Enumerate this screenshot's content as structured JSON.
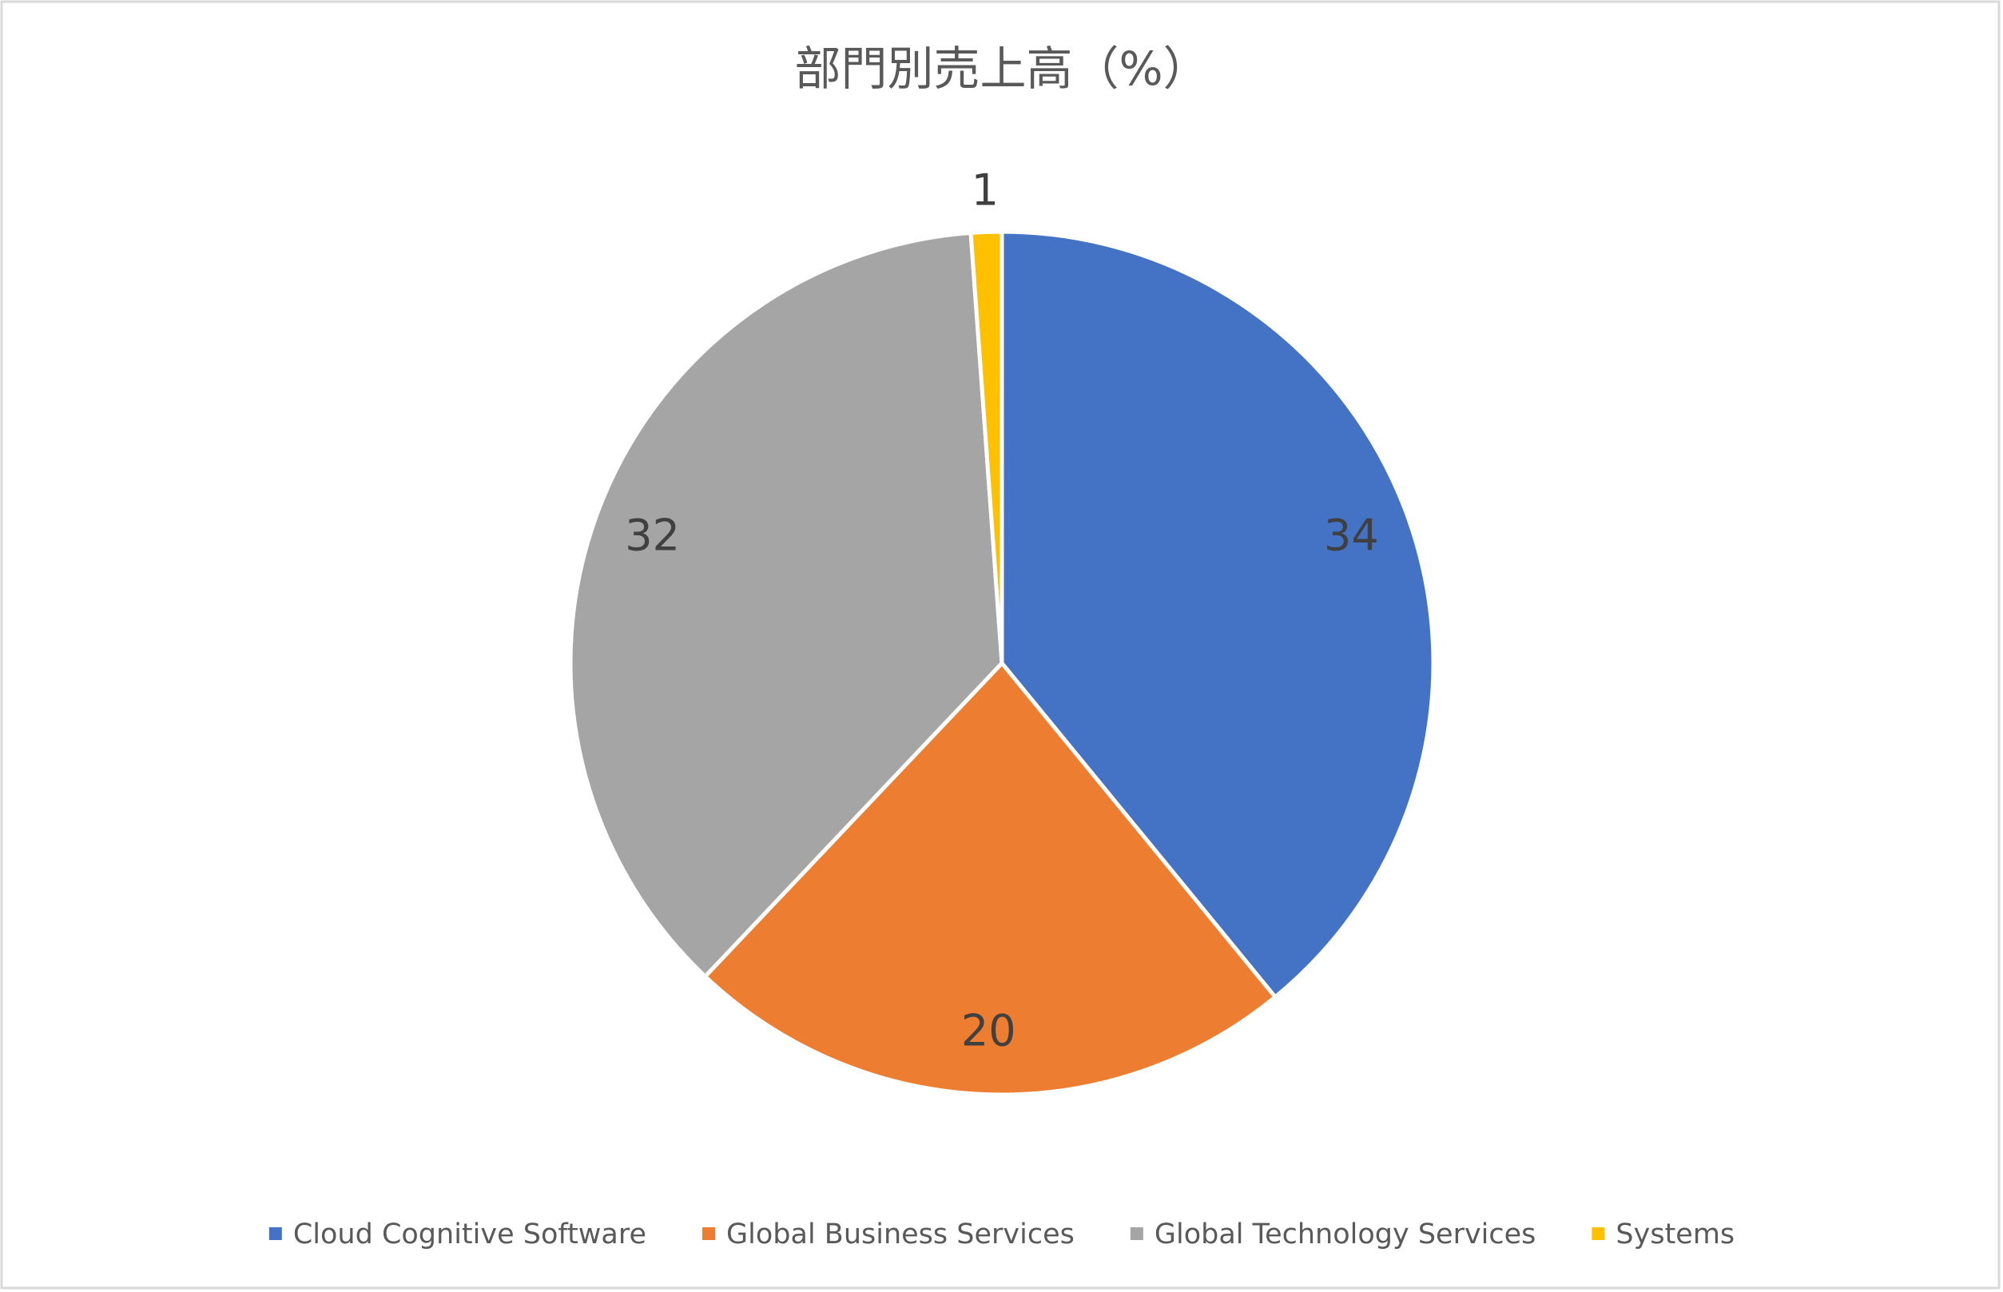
{
  "chart_data": {
    "type": "pie",
    "title": "部門別売上高（%）",
    "categories": [
      "Cloud Cognitive Software",
      "Global Business Services",
      "Global Technology Services",
      "Systems"
    ],
    "values": [
      34,
      20,
      32,
      1
    ],
    "colors": [
      "#4472c4",
      "#ed7d31",
      "#a5a5a5",
      "#ffc000"
    ],
    "legend": "bottom"
  }
}
